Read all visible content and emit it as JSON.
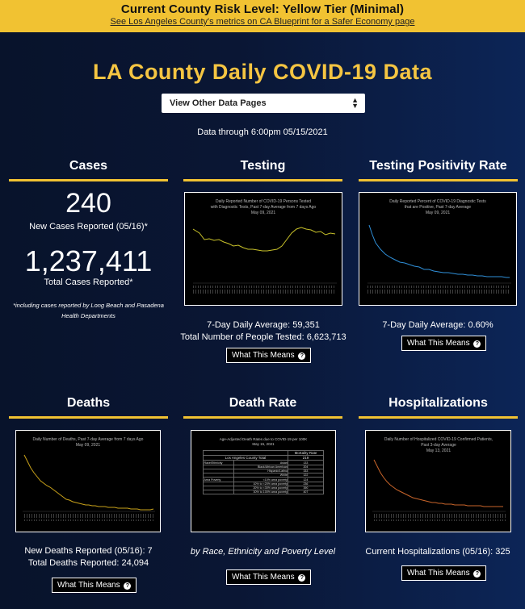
{
  "banner": {
    "risk_level": "Current County Risk Level: Yellow Tier (Minimal)",
    "link_text": "See Los Angeles County's metrics on CA Blueprint for a Safer Economy page"
  },
  "page_title": "LA County Daily COVID-19 Data",
  "page_selector": {
    "selected": "View Other Data Pages"
  },
  "data_through": "Data through 6:00pm 05/15/2021",
  "cases": {
    "heading": "Cases",
    "new_count": "240",
    "new_label": "New Cases Reported (05/16)*",
    "total_count": "1,237,411",
    "total_label": "Total Cases Reported*",
    "footnote_line1": "*including cases reported by Long Beach and Pasadena",
    "footnote_line2": "Health Departments"
  },
  "testing": {
    "heading": "Testing",
    "chart_title": [
      "Daily Reported Number of COVID-19 Persons Tested",
      "with Diagnostic Tests, Past 7-day Average from 7 days Ago",
      "May 09, 2021"
    ],
    "avg_text": "7-Day Daily Average: 59,351",
    "total_text": "Total Number of People Tested: 6,623,713",
    "button": "What This Means"
  },
  "positivity": {
    "heading": "Testing Positivity Rate",
    "chart_title": [
      "Daily Reported Percent of COVID-19 Diagnostic Tests",
      "that are Positive, Past 7-day Average",
      "May 09, 2021"
    ],
    "avg_text": "7-Day Daily Average: 0.60%",
    "button": "What This Means"
  },
  "deaths": {
    "heading": "Deaths",
    "chart_title": [
      "Daily Number of Deaths, Past 7-day Average from 7 days Ago",
      "May 09, 2021"
    ],
    "new_text": "New Deaths Reported (05/16): 7",
    "total_text": "Total Deaths Reported: 24,094",
    "button": "What This Means"
  },
  "death_rate": {
    "heading": "Death Rate",
    "table_title": [
      "Age-Adjusted Death Rates due to COVID-19 per 100K",
      "May 15, 2021"
    ],
    "col_header": "Mortality Rate",
    "total_label": "Los Angeles County Total",
    "total_value": "219",
    "group_race": "Race/Ethnicity",
    "group_poverty": "Area Poverty",
    "rows": [
      {
        "label": "Asian",
        "value": "133"
      },
      {
        "label": "Black/African American",
        "value": "204"
      },
      {
        "label": "Hispanic/Latino",
        "value": "333"
      },
      {
        "label": "White",
        "value": "122"
      },
      {
        "label": "<10% area poverty",
        "value": "124"
      },
      {
        "label": "10% to <20% area poverty",
        "value": "236"
      },
      {
        "label": "20% to <30% area poverty",
        "value": "390"
      },
      {
        "label": "30% to 100% area poverty",
        "value": "407"
      }
    ],
    "caption": "by Race, Ethnicity and Poverty Level",
    "button": "What This Means"
  },
  "hospitalizations": {
    "heading": "Hospitalizations",
    "chart_title": [
      "Daily Number of Hospitalized COVID-19 Confirmed Patients,",
      "Past 3-day Average",
      "May 13, 2021"
    ],
    "current_text": "Current Hospitalizations (05/16): 325",
    "button": "What This Means"
  },
  "colors": {
    "accent": "#f1c232",
    "testing_line": "#c9c22a",
    "positivity_line": "#2f8fd8",
    "deaths_line": "#c9a21a",
    "hosp_line": "#c9652a"
  }
}
